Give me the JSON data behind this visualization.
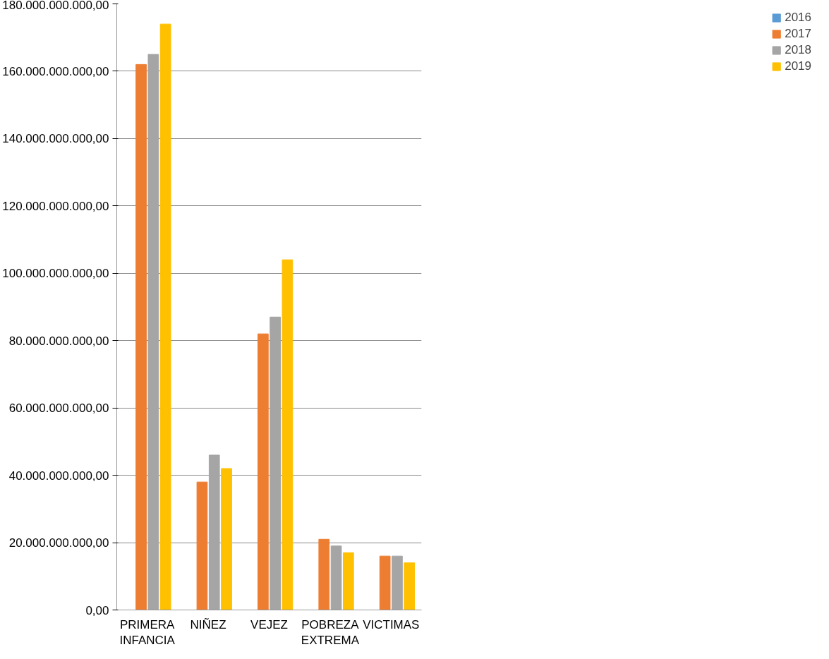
{
  "chart_data": {
    "type": "bar",
    "categories": [
      "PRIMERA INFANCIA",
      "NIÑEZ",
      "VEJEZ",
      "POBREZA EXTREMA",
      "VICTIMAS"
    ],
    "series": [
      {
        "name": "2016",
        "color": "#5b9bd5",
        "values": [
          0,
          0,
          0,
          0,
          0
        ]
      },
      {
        "name": "2017",
        "color": "#ed7d31",
        "values": [
          162000000000,
          38000000000,
          82000000000,
          21000000000,
          16000000000
        ]
      },
      {
        "name": "2018",
        "color": "#a5a5a5",
        "values": [
          165000000000,
          46000000000,
          87000000000,
          19000000000,
          16000000000
        ]
      },
      {
        "name": "2019",
        "color": "#ffc000",
        "values": [
          174000000000,
          42000000000,
          104000000000,
          17000000000,
          14000000000
        ]
      }
    ],
    "ylim": [
      0,
      180000000000
    ],
    "yticks": [
      {
        "value": 0,
        "label": "0,00"
      },
      {
        "value": 20000000000,
        "label": "20.000.000.000,00"
      },
      {
        "value": 40000000000,
        "label": "40.000.000.000,00"
      },
      {
        "value": 60000000000,
        "label": "60.000.000.000,00"
      },
      {
        "value": 80000000000,
        "label": "80.000.000.000,00"
      },
      {
        "value": 100000000000,
        "label": "100.000.000.000,00"
      },
      {
        "value": 120000000000,
        "label": "120.000.000.000,00"
      },
      {
        "value": 140000000000,
        "label": "140.000.000.000,00"
      },
      {
        "value": 160000000000,
        "label": "160.000.000.000,00"
      },
      {
        "value": 180000000000,
        "label": "180.000.000.000,00"
      }
    ],
    "grid": "y",
    "legend": "right"
  }
}
